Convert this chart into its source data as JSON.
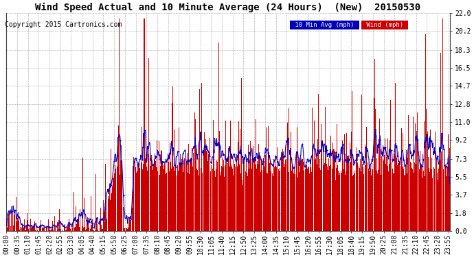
{
  "title": "Wind Speed Actual and 10 Minute Average (24 Hours)  (New)  20150530",
  "copyright": "Copyright 2015 Cartronics.com",
  "yticks": [
    0.0,
    1.8,
    3.7,
    5.5,
    7.3,
    9.2,
    11.0,
    12.8,
    14.7,
    16.5,
    18.3,
    20.2,
    22.0
  ],
  "ymin": 0.0,
  "ymax": 22.0,
  "legend_10min_label": "10 Min Avg (mph)",
  "legend_10min_bg": "#0000bb",
  "legend_wind_label": "Wind (mph)",
  "legend_wind_bg": "#cc0000",
  "bg_color": "#ffffff",
  "plot_bg_color": "#ffffff",
  "grid_color": "#999999",
  "bar_color": "#cc0000",
  "line_color": "#0000cc",
  "title_fontsize": 10,
  "copyright_fontsize": 7,
  "tick_fontsize": 7,
  "n_points": 1440,
  "xtick_step": 35,
  "bar_width": 0.9
}
